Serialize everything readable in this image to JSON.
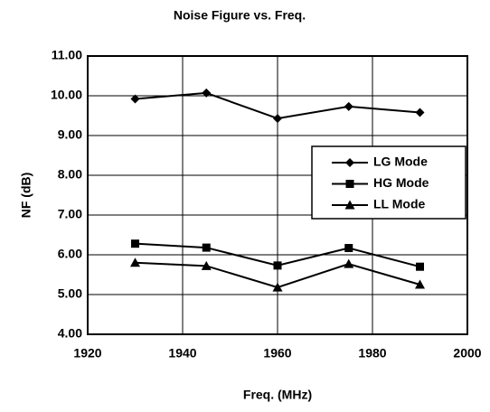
{
  "chart_data": {
    "type": "line",
    "title": "Noise Figure vs. Freq.",
    "x_label": "Freq. (MHz)",
    "y_label": "NF (dB)",
    "x": [
      1930,
      1945,
      1960,
      1975,
      1990
    ],
    "series": [
      {
        "name": "LG Mode",
        "color": "#000000",
        "marker": "diamond",
        "values": [
          9.92,
          10.07,
          9.43,
          9.73,
          9.58
        ]
      },
      {
        "name": "HG Mode",
        "color": "#000000",
        "marker": "square",
        "values": [
          6.28,
          6.18,
          5.73,
          6.17,
          5.7
        ]
      },
      {
        "name": "LL Mode",
        "color": "#000000",
        "marker": "triangle",
        "values": [
          5.8,
          5.72,
          5.18,
          5.77,
          5.25
        ]
      }
    ],
    "xlim": [
      1920,
      2000
    ],
    "xticks": [
      1920,
      1940,
      1960,
      1980,
      2000
    ],
    "ylim": [
      4,
      11
    ],
    "yticks": [
      {
        "value": 4,
        "label": "4.00"
      },
      {
        "value": 5,
        "label": "5.00"
      },
      {
        "value": 6,
        "label": "6.00"
      },
      {
        "value": 7,
        "label": "7.00"
      },
      {
        "value": 8,
        "label": "8.00"
      },
      {
        "value": 9,
        "label": "9.00"
      },
      {
        "value": 10,
        "label": "10.00"
      },
      {
        "value": 11,
        "label": "11.00"
      }
    ],
    "grid": true,
    "legend": "right"
  }
}
